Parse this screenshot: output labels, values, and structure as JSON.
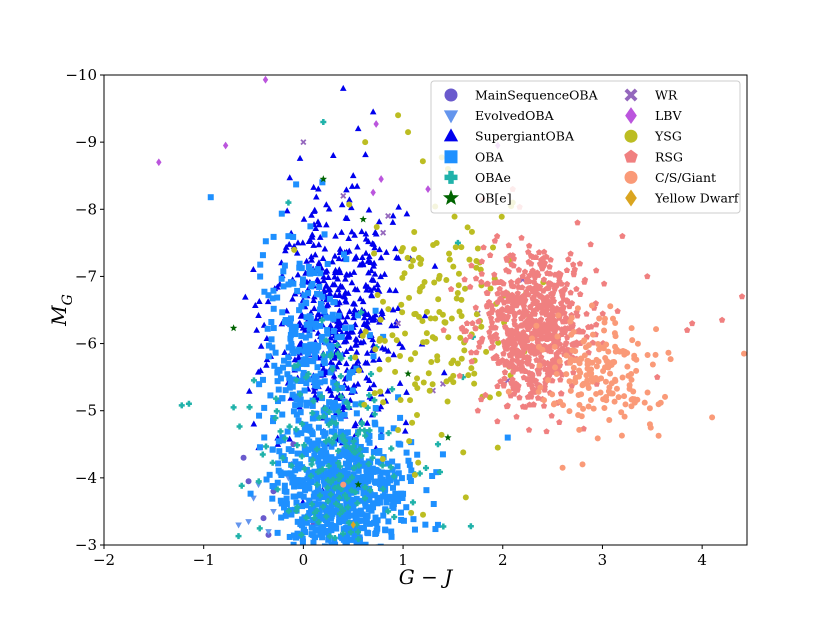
{
  "chart_data": {
    "type": "scatter",
    "title": "",
    "xlabel": "G − J",
    "ylabel": "M",
    "ylabel_sub": "G",
    "xlim": [
      -2,
      4.45
    ],
    "ylim": [
      -3,
      -10
    ],
    "y_inverted": true,
    "grid": false,
    "legend_placement": "top-right",
    "x_ticks": [
      -2,
      -1,
      0,
      1,
      2,
      3,
      4
    ],
    "x_tick_labels": [
      "−2",
      "−1",
      "0",
      "1",
      "2",
      "3",
      "4"
    ],
    "y_ticks": [
      -3,
      -4,
      -5,
      -6,
      -7,
      -8,
      -9,
      -10
    ],
    "y_tick_labels": [
      "−3",
      "−4",
      "−5",
      "−6",
      "−7",
      "−8",
      "−9",
      "−10"
    ],
    "legend_columns": [
      [
        "MainSequenceOBA",
        "EvolvedOBA",
        "SupergiantOBA",
        "OBA",
        "OBAe",
        "OB[e]"
      ],
      [
        "WR",
        "LBV",
        "YSG",
        "RSG",
        "C/S/Giant",
        "Yellow Dwarf"
      ]
    ],
    "series": [
      {
        "name": "MainSequenceOBA",
        "color": "#6a5acd",
        "marker": "circle",
        "points": [
          [
            -0.6,
            -4.3
          ],
          [
            -0.55,
            -3.95
          ],
          [
            -0.4,
            -3.4
          ],
          [
            -0.3,
            -3.8
          ],
          [
            -0.1,
            -4.5
          ],
          [
            0.1,
            -3.3
          ],
          [
            0.2,
            -4.1
          ],
          [
            -0.35,
            -3.15
          ],
          [
            -0.2,
            -3.6
          ],
          [
            0.35,
            -3.5
          ]
        ]
      },
      {
        "name": "EvolvedOBA",
        "color": "#6495ed",
        "marker": "triangle-down",
        "points": [
          [
            -0.65,
            -3.3
          ],
          [
            -0.55,
            -3.35
          ],
          [
            -0.45,
            -3.9
          ],
          [
            -0.35,
            -3.2
          ],
          [
            -0.3,
            -3.5
          ],
          [
            0.1,
            -3.1
          ],
          [
            0.25,
            -3.4
          ],
          [
            -0.5,
            -3.7
          ],
          [
            -0.15,
            -4.0
          ],
          [
            0.05,
            -3.65
          ]
        ]
      },
      {
        "name": "SupergiantOBA",
        "color": "#0000ee",
        "marker": "triangle-up",
        "cloud": {
          "x_mean": 0.35,
          "x_sd": 0.33,
          "y_mean": -6.3,
          "y_sd": 0.95,
          "count": 520
        },
        "points": [
          [
            0.4,
            -9.8
          ],
          [
            0.7,
            -9.45
          ],
          [
            0.55,
            -9.2
          ],
          [
            0.3,
            -8.8
          ],
          [
            0.5,
            -8.5
          ],
          [
            0.15,
            -8.3
          ],
          [
            0.9,
            -7.9
          ]
        ]
      },
      {
        "name": "OBA",
        "color": "#1e90ff",
        "marker": "square",
        "cloud": {
          "x_mean": 0.4,
          "x_sd": 0.32,
          "y_mean": -3.75,
          "y_sd": 0.5,
          "count": 700
        },
        "cloud2": {
          "x_mean": 0.05,
          "x_sd": 0.25,
          "y_mean": -5.8,
          "y_sd": 0.85,
          "count": 280
        },
        "points": [
          [
            2.05,
            -4.6
          ],
          [
            1.4,
            -4.35
          ],
          [
            1.35,
            -3.3
          ],
          [
            0.8,
            -6.1
          ],
          [
            0.95,
            -5.2
          ],
          [
            -0.15,
            -7.6
          ]
        ]
      },
      {
        "name": "OBAe",
        "color": "#20b2aa",
        "marker": "plus",
        "cloud": {
          "x_mean": 0.3,
          "x_sd": 0.35,
          "y_mean": -4.4,
          "y_sd": 0.8,
          "count": 180
        },
        "points": [
          [
            -1.22,
            -5.08
          ],
          [
            -0.7,
            -5.05
          ],
          [
            1.68,
            -3.28
          ],
          [
            0.2,
            -9.3
          ],
          [
            -0.15,
            -8.1
          ],
          [
            1.6,
            -5.5
          ],
          [
            1.7,
            -6.1
          ],
          [
            1.55,
            -7.5
          ],
          [
            1.35,
            -4.5
          ],
          [
            0.85,
            -3.5
          ]
        ]
      },
      {
        "name": "OB[e]",
        "color": "#006400",
        "marker": "star",
        "points": [
          [
            -0.7,
            -6.23
          ],
          [
            0.6,
            -7.85
          ],
          [
            1.45,
            -4.6
          ],
          [
            1.05,
            -5.55
          ],
          [
            0.2,
            -8.45
          ],
          [
            0.55,
            -3.9
          ]
        ]
      },
      {
        "name": "WR",
        "color": "#9467bd",
        "marker": "cross",
        "points": [
          [
            0.0,
            -9.0
          ],
          [
            0.8,
            -7.65
          ],
          [
            0.85,
            -7.9
          ],
          [
            1.3,
            -5.3
          ],
          [
            2.05,
            -5.45
          ],
          [
            0.95,
            -6.3
          ],
          [
            1.4,
            -5.4
          ],
          [
            2.2,
            -6.95
          ],
          [
            0.4,
            -8.2
          ],
          [
            1.75,
            -6.45
          ]
        ]
      },
      {
        "name": "LBV",
        "color": "#bb55dd",
        "marker": "diamond",
        "points": [
          [
            -1.45,
            -8.7
          ],
          [
            -0.78,
            -8.95
          ],
          [
            -0.38,
            -9.93
          ],
          [
            0.73,
            -9.27
          ],
          [
            1.95,
            -8.95
          ],
          [
            1.25,
            -8.3
          ],
          [
            0.7,
            -8.25
          ],
          [
            0.78,
            -8.45
          ]
        ]
      },
      {
        "name": "YSG",
        "color": "#bcbd22",
        "marker": "circle",
        "cloud": {
          "x_mean": 1.35,
          "x_sd": 0.45,
          "y_mean": -6.3,
          "y_sd": 1.1,
          "count": 170
        },
        "points": [
          [
            0.95,
            -9.4
          ],
          [
            1.05,
            -9.15
          ],
          [
            0.62,
            -9.0
          ],
          [
            1.45,
            -8.6
          ],
          [
            1.95,
            -4.45
          ],
          [
            2.1,
            -8.1
          ],
          [
            1.2,
            -3.45
          ]
        ]
      },
      {
        "name": "RSG",
        "color": "#f08080",
        "marker": "pentagon",
        "cloud": {
          "x_mean": 2.3,
          "x_sd": 0.27,
          "y_mean": -6.25,
          "y_sd": 0.55,
          "count": 700
        },
        "points": [
          [
            3.2,
            -7.6
          ],
          [
            3.45,
            -7.0
          ],
          [
            3.9,
            -6.3
          ],
          [
            4.2,
            -6.35
          ],
          [
            4.4,
            -6.7
          ],
          [
            3.85,
            -6.2
          ],
          [
            2.75,
            -7.8
          ],
          [
            1.8,
            -8.15
          ],
          [
            2.1,
            -8.3
          ],
          [
            1.75,
            -5.0
          ],
          [
            3.55,
            -5.5
          ]
        ]
      },
      {
        "name": "C/S/Giant",
        "color": "#fa9a78",
        "marker": "circle",
        "cloud": {
          "x_mean": 2.95,
          "x_sd": 0.28,
          "y_mean": -5.55,
          "y_sd": 0.45,
          "count": 190
        },
        "points": [
          [
            4.1,
            -4.9
          ],
          [
            2.6,
            -4.15
          ],
          [
            2.8,
            -4.2
          ],
          [
            4.42,
            -5.85
          ],
          [
            0.4,
            -3.9
          ]
        ]
      },
      {
        "name": "Yellow Dwarf",
        "color": "#daa520",
        "marker": "diamond",
        "points": [
          [
            0.5,
            -3.3
          ]
        ]
      }
    ]
  }
}
